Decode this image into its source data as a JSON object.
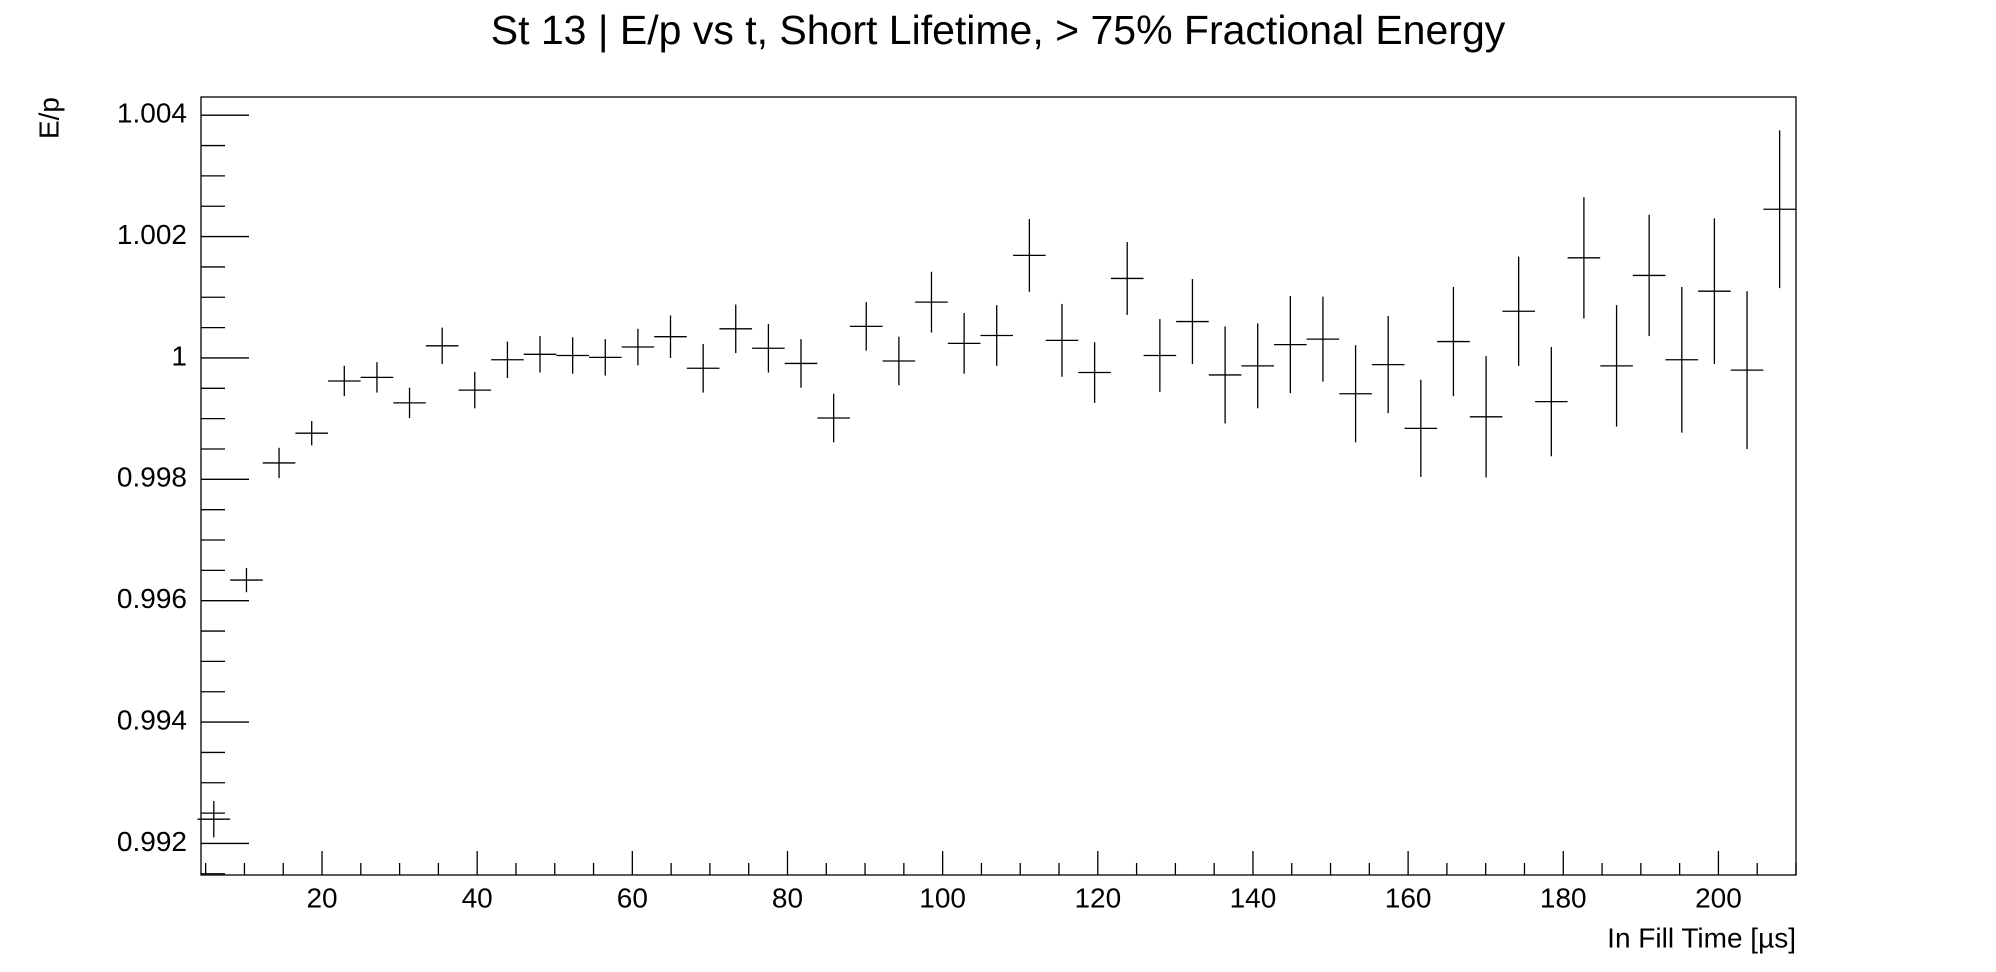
{
  "chart_data": {
    "type": "errorbar",
    "title": "St 13 | E/p vs t, Short Lifetime, > 75% Fractional Energy",
    "xlabel": "In Fill Time [µs]",
    "ylabel": "E/p",
    "color": "#000000",
    "x": [
      6.05,
      10.26,
      14.46,
      18.67,
      22.87,
      27.08,
      31.28,
      35.49,
      39.69,
      43.9,
      48.1,
      52.31,
      56.51,
      60.72,
      64.92,
      69.13,
      73.33,
      77.54,
      81.74,
      85.95,
      90.15,
      94.36,
      98.56,
      102.77,
      106.97,
      111.18,
      115.38,
      119.59,
      123.79,
      128.0,
      132.2,
      136.41,
      140.61,
      144.82,
      149.02,
      153.23,
      157.43,
      161.64,
      165.84,
      170.05,
      174.25,
      178.46,
      182.66,
      186.87,
      191.07,
      195.28,
      199.48,
      203.69,
      207.89
    ],
    "xerr": [
      2.1,
      2.1,
      2.1,
      2.1,
      2.1,
      2.1,
      2.1,
      2.1,
      2.1,
      2.1,
      2.1,
      2.1,
      2.1,
      2.1,
      2.1,
      2.1,
      2.1,
      2.1,
      2.1,
      2.1,
      2.1,
      2.1,
      2.1,
      2.1,
      2.1,
      2.1,
      2.1,
      2.1,
      2.1,
      2.1,
      2.1,
      2.1,
      2.1,
      2.1,
      2.1,
      2.1,
      2.1,
      2.1,
      2.1,
      2.1,
      2.1,
      2.1,
      2.1,
      2.1,
      2.1,
      2.1,
      2.1,
      2.1,
      2.1
    ],
    "values": [
      0.9924,
      0.99634,
      0.99827,
      0.99876,
      0.99962,
      0.99968,
      0.99926,
      1.0002,
      0.99947,
      0.99997,
      1.00006,
      1.00004,
      1.00001,
      1.00018,
      1.00035,
      0.99983,
      1.00048,
      1.00016,
      0.99991,
      0.99901,
      1.00052,
      0.99995,
      1.00092,
      1.00024,
      1.00037,
      1.00169,
      1.00029,
      0.99976,
      1.00131,
      1.00004,
      1.0006,
      0.99972,
      0.99987,
      1.00022,
      1.00031,
      0.99941,
      0.99989,
      0.99884,
      1.00027,
      0.99903,
      1.00077,
      0.99928,
      1.00165,
      0.99987,
      1.00136,
      0.99997,
      1.0011,
      0.9998,
      1.00245
    ],
    "yerr": [
      0.0003,
      0.0002,
      0.00025,
      0.0002,
      0.00025,
      0.00025,
      0.00025,
      0.0003,
      0.0003,
      0.0003,
      0.0003,
      0.0003,
      0.0003,
      0.0003,
      0.00035,
      0.0004,
      0.0004,
      0.0004,
      0.0004,
      0.0004,
      0.0004,
      0.0004,
      0.0005,
      0.0005,
      0.0005,
      0.0006,
      0.0006,
      0.0005,
      0.0006,
      0.0006,
      0.0007,
      0.0008,
      0.0007,
      0.0008,
      0.0007,
      0.0008,
      0.0008,
      0.0008,
      0.0009,
      0.001,
      0.0009,
      0.0009,
      0.001,
      0.001,
      0.001,
      0.0012,
      0.0012,
      0.0013,
      0.0013
    ],
    "xlim": [
      4.4,
      210
    ],
    "ylim": [
      0.99148,
      1.0043
    ],
    "xticks": [
      20,
      40,
      60,
      80,
      100,
      120,
      140,
      160,
      180,
      200
    ],
    "xticks_minor": [
      5,
      10,
      15,
      25,
      30,
      35,
      45,
      50,
      55,
      65,
      70,
      75,
      85,
      90,
      95,
      105,
      110,
      115,
      125,
      130,
      135,
      145,
      150,
      155,
      165,
      170,
      175,
      185,
      190,
      195,
      205,
      210
    ],
    "yticks": [
      0.992,
      0.994,
      0.996,
      0.998,
      1,
      1.002,
      1.004
    ],
    "yticks_minor": [
      0.9915,
      0.9925,
      0.993,
      0.9935,
      0.9945,
      0.995,
      0.9955,
      0.9965,
      0.997,
      0.9975,
      0.9985,
      0.999,
      0.9995,
      1.0005,
      1.001,
      1.0015,
      1.0025,
      1.003,
      1.0035
    ],
    "grid": false
  }
}
